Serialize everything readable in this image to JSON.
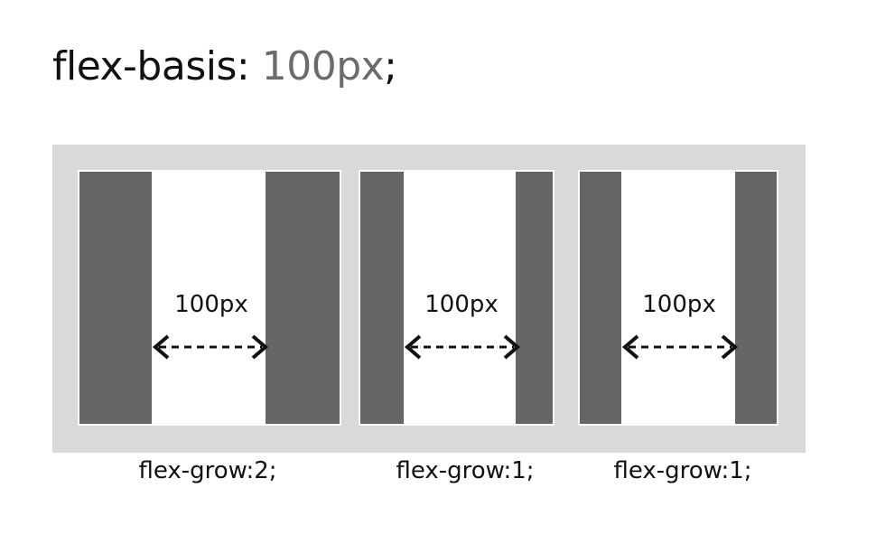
{
  "title": {
    "property": "flex-basis:",
    "value": "100px",
    "terminator": ";"
  },
  "items": [
    {
      "basis_label": "100px",
      "grow_label": "flex-grow:2;"
    },
    {
      "basis_label": "100px",
      "grow_label": "flex-grow:1;"
    },
    {
      "basis_label": "100px",
      "grow_label": "flex-grow:1;"
    }
  ],
  "colors": {
    "container": "#d9d9d9",
    "bar": "#666666",
    "item": "#ffffff",
    "value_text": "#6b6b6b"
  }
}
